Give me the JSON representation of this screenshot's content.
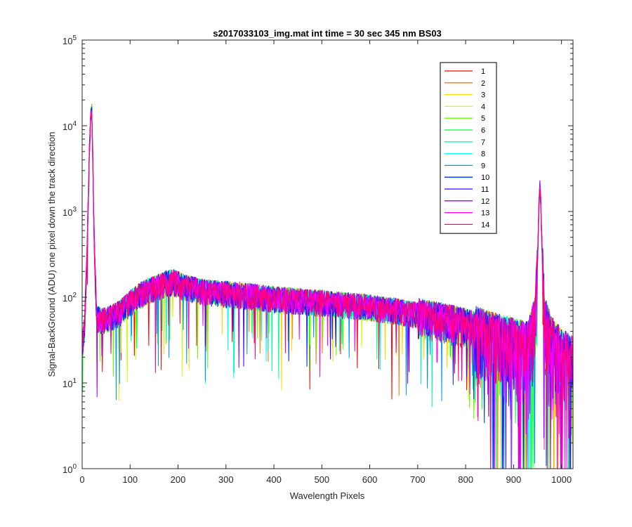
{
  "chart_data": {
    "type": "line",
    "title": "s2017033103_img.mat int time = 30 sec  345 nm BS03",
    "xlabel": "Wavelength Pixels",
    "ylabel": "Signal-BackGround (ADU) one pixel down the track direction",
    "xlim": [
      0,
      1024
    ],
    "ylim": [
      1,
      100000
    ],
    "yscale": "log",
    "grid": false,
    "legend_position": "top-right",
    "x_ticks": [
      0,
      100,
      200,
      300,
      400,
      500,
      600,
      700,
      800,
      900,
      1000
    ],
    "y_ticks": [
      {
        "value": 1,
        "base": "10",
        "exp": "0"
      },
      {
        "value": 10,
        "base": "10",
        "exp": "1"
      },
      {
        "value": 100,
        "base": "10",
        "exp": "2"
      },
      {
        "value": 1000,
        "base": "10",
        "exp": "3"
      },
      {
        "value": 10000,
        "base": "10",
        "exp": "4"
      },
      {
        "value": 100000,
        "base": "10",
        "exp": "5"
      }
    ],
    "profile": {
      "x": [
        0,
        5,
        10,
        15,
        18,
        20,
        22,
        25,
        30,
        40,
        60,
        80,
        100,
        120,
        140,
        160,
        180,
        190,
        200,
        210,
        230,
        260,
        300,
        350,
        400,
        450,
        500,
        550,
        600,
        650,
        700,
        750,
        800,
        850,
        900,
        930,
        945,
        950,
        953,
        955,
        957,
        960,
        965,
        980,
        1000,
        1024
      ],
      "y": [
        30,
        45,
        300,
        5000,
        14000,
        15000,
        5000,
        500,
        60,
        55,
        60,
        70,
        90,
        110,
        125,
        140,
        155,
        158,
        150,
        140,
        130,
        120,
        115,
        108,
        100,
        95,
        90,
        85,
        80,
        73,
        65,
        58,
        50,
        40,
        33,
        30,
        60,
        300,
        1200,
        2000,
        1200,
        300,
        60,
        35,
        25,
        20
      ]
    },
    "series": [
      {
        "name": "1",
        "color": "#ff0000"
      },
      {
        "name": "2",
        "color": "#ff7800"
      },
      {
        "name": "3",
        "color": "#ffd700"
      },
      {
        "name": "4",
        "color": "#c8ff00"
      },
      {
        "name": "5",
        "color": "#64ff00"
      },
      {
        "name": "6",
        "color": "#00ff32"
      },
      {
        "name": "7",
        "color": "#00ffa0"
      },
      {
        "name": "8",
        "color": "#00ffff"
      },
      {
        "name": "9",
        "color": "#0096ff"
      },
      {
        "name": "10",
        "color": "#0028ff"
      },
      {
        "name": "11",
        "color": "#3c00ff"
      },
      {
        "name": "12",
        "color": "#a000ff"
      },
      {
        "name": "13",
        "color": "#ff00ff"
      },
      {
        "name": "14",
        "color": "#ff0078"
      }
    ]
  }
}
